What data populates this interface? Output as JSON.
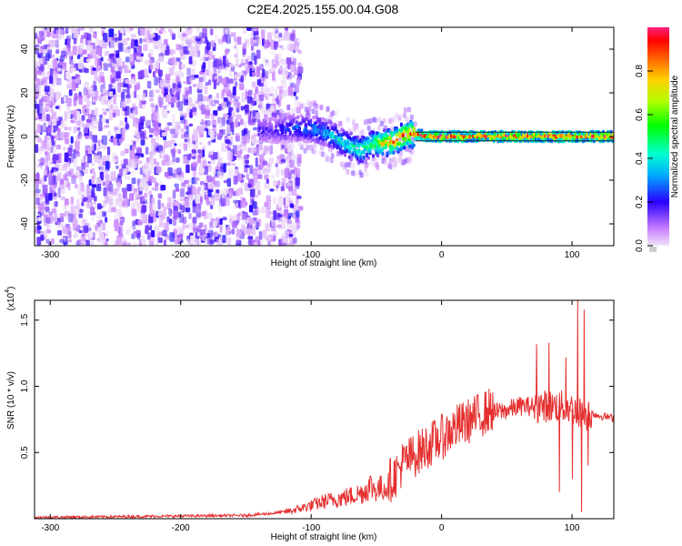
{
  "title": "C2E4.2025.155.00.04.G08",
  "chart_data": [
    {
      "type": "heatmap",
      "xlabel": "Height of straight line (km)",
      "ylabel": "Frequency (Hz)",
      "xlim": [
        -312,
        132
      ],
      "ylim": [
        -50,
        50
      ],
      "x_ticks": [
        "-300",
        "-200",
        "-100",
        "0",
        "100"
      ],
      "y_ticks": [
        "40",
        "20",
        "0",
        "-20",
        "-40"
      ],
      "colorbar": {
        "label": "Normalized spectral amplitude",
        "range": [
          0,
          1
        ],
        "ticks": [
          "0.0",
          "0.2",
          "0.4",
          "0.6",
          "0.8"
        ]
      },
      "ridge": {
        "x": [
          -130,
          -110,
          -95,
          -85,
          -75,
          -68,
          -62,
          -55,
          -48,
          -42,
          -35,
          -30,
          -25,
          -20,
          -10,
          0,
          50,
          100,
          130
        ],
        "y": [
          3,
          4,
          3,
          1,
          -3,
          -5,
          -6,
          -4,
          -3,
          -3,
          -2,
          0,
          1,
          1,
          0,
          0,
          0,
          0,
          0
        ],
        "amplitude": [
          0.2,
          0.3,
          0.35,
          0.4,
          0.45,
          0.5,
          0.55,
          0.55,
          0.7,
          0.85,
          0.9,
          0.9,
          0.9,
          1.0,
          1.0,
          1.0,
          1.0,
          1.0,
          1.0
        ]
      }
    },
    {
      "type": "line",
      "xlabel": "Height of straight line (km)",
      "ylabel": "SNR (10 * v/v)",
      "scale_label": "(x10",
      "scale_exponent": "4",
      "xlim": [
        -312,
        132
      ],
      "ylim": [
        0,
        1.65
      ],
      "x_ticks": [
        "-300",
        "-200",
        "-100",
        "0",
        "100"
      ],
      "y_ticks": [
        "0.5",
        "1.0",
        "1.5"
      ],
      "color": "#e53030",
      "series": [
        {
          "x": [
            -312,
            -250,
            -200,
            -150,
            -130,
            -115,
            -100,
            -90,
            -80,
            -70,
            -60,
            -55,
            -50,
            -40,
            -35,
            -30,
            -20,
            -10,
            0,
            10,
            20,
            30,
            40,
            50,
            60,
            70,
            80,
            90,
            100,
            105,
            110,
            115,
            120,
            132
          ],
          "y": [
            0.01,
            0.015,
            0.02,
            0.025,
            0.04,
            0.06,
            0.1,
            0.13,
            0.15,
            0.17,
            0.2,
            0.25,
            0.22,
            0.25,
            0.3,
            0.38,
            0.45,
            0.52,
            0.58,
            0.65,
            0.7,
            0.75,
            0.8,
            0.82,
            0.85,
            0.85,
            0.85,
            0.85,
            0.83,
            0.8,
            0.78,
            0.8,
            0.78,
            0.76
          ]
        }
      ]
    }
  ]
}
